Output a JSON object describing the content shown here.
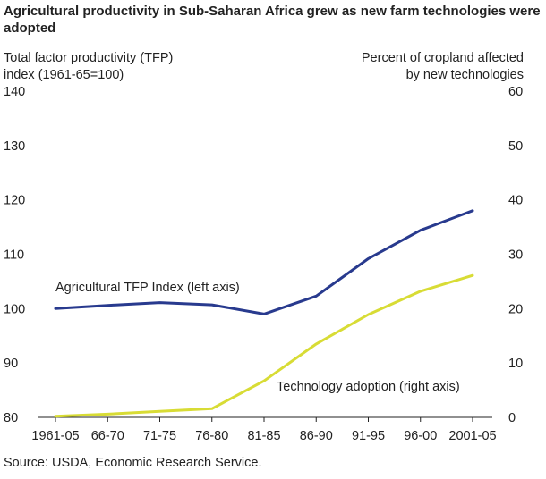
{
  "title": "Agricultural productivity in Sub-Saharan Africa grew as new farm technologies were adopted",
  "source": "Source: USDA, Economic Research Service.",
  "chart_data": {
    "type": "line",
    "title": "Agricultural productivity in Sub-Saharan Africa grew as new farm technologies were adopted",
    "ylabel_left": [
      "Total factor productivity (TFP)",
      "index (1961-65=100)"
    ],
    "ylabel_right": [
      "Percent of cropland affected",
      "by new technologies"
    ],
    "categories": [
      "1961-05",
      "66-70",
      "71-75",
      "76-80",
      "81-85",
      "86-90",
      "91-95",
      "96-00",
      "2001-05"
    ],
    "ylim_left": [
      80,
      140
    ],
    "yticks_left": [
      80,
      90,
      100,
      110,
      120,
      130,
      140
    ],
    "ylim_right": [
      0,
      60
    ],
    "yticks_right": [
      0,
      10,
      20,
      30,
      40,
      50,
      60
    ],
    "grid": false,
    "series": [
      {
        "name": "Agricultural TFP Index (left axis)",
        "axis": "left",
        "color": "#283a8e",
        "values": [
          100.0,
          100.6,
          101.1,
          100.7,
          99.0,
          102.3,
          109.2,
          114.4,
          118.0
        ]
      },
      {
        "name": "Technology adoption (right axis)",
        "axis": "right",
        "color": "#d8dc35",
        "values": [
          0.2,
          0.6,
          1.1,
          1.6,
          6.7,
          13.5,
          18.9,
          23.2,
          26.1
        ]
      }
    ]
  }
}
